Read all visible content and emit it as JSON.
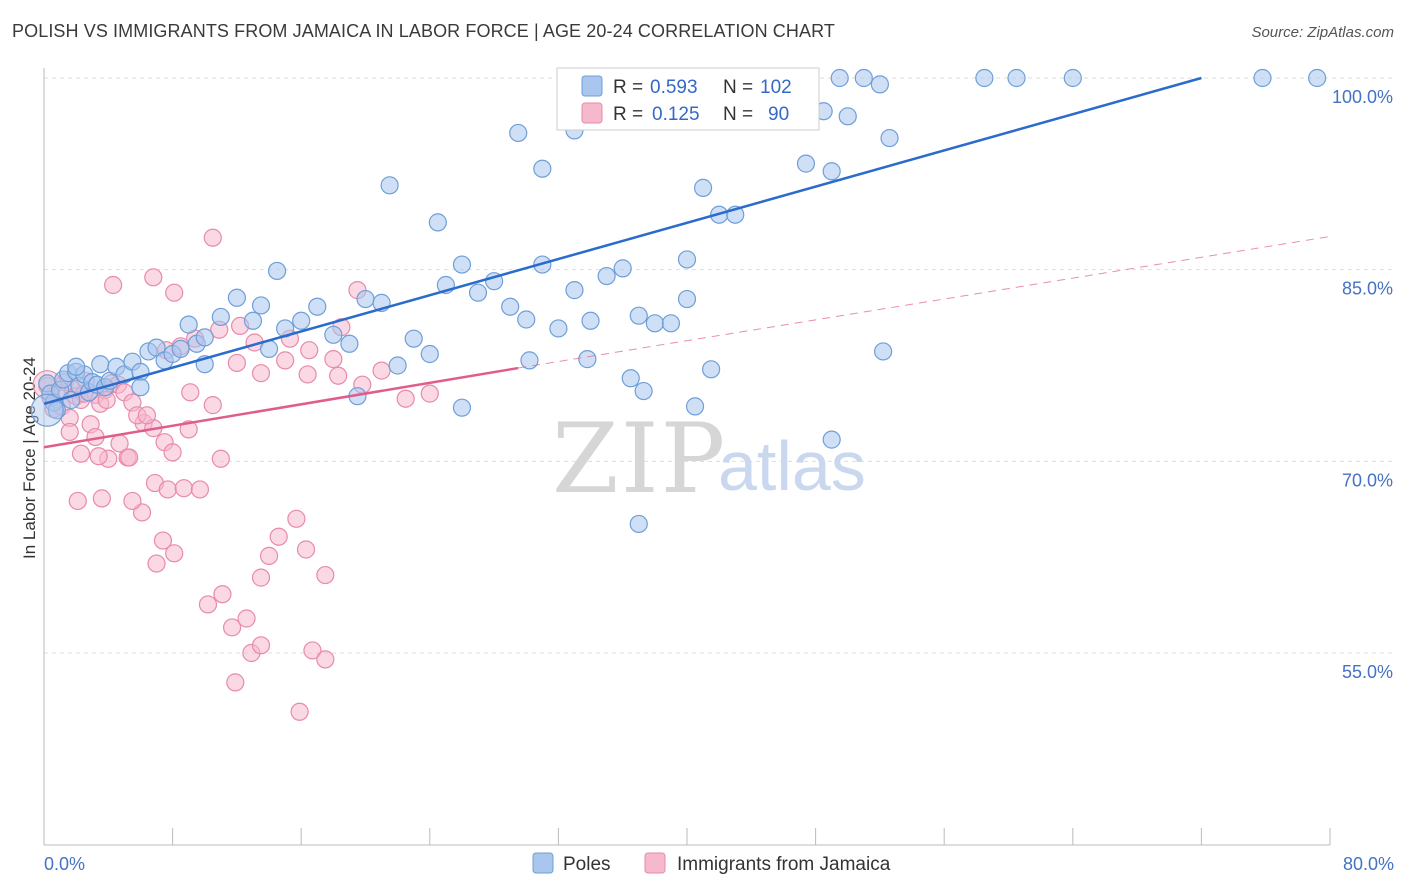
{
  "header": {
    "title": "POLISH VS IMMIGRANTS FROM JAMAICA IN LABOR FORCE | AGE 20-24 CORRELATION CHART",
    "source": "Source: ZipAtlas.com"
  },
  "watermark": {
    "zip": "ZIP",
    "atlas": "atlas"
  },
  "legend_box": {
    "rows": [
      {
        "r_label": "R =",
        "r_value": "0.593",
        "n_label": "N =",
        "n_value": "102"
      },
      {
        "r_label": "R =",
        "r_value": "0.125",
        "n_label": "N =",
        "n_value": "90"
      }
    ]
  },
  "bottom_legend": {
    "poles": "Poles",
    "jamaica": "Immigrants from Jamaica"
  },
  "colors": {
    "blue_fill": "#a8c6ee",
    "blue_stroke": "#6f9ed8",
    "blue_line": "#2a6bcc",
    "pink_fill": "#f5b8cd",
    "pink_stroke": "#e88aab",
    "pink_line": "#e05c8c",
    "axis_label": "#4472c4",
    "grid": "#dddddd"
  },
  "chart_data": {
    "type": "scatter",
    "title": "POLISH VS IMMIGRANTS FROM JAMAICA IN LABOR FORCE | AGE 20-24 CORRELATION CHART",
    "xlabel": "",
    "ylabel": "In Labor Force | Age 20-24",
    "xlim": [
      0,
      80
    ],
    "ylim": [
      40,
      102
    ],
    "x_tick_labels": [
      "0.0%",
      "80.0%"
    ],
    "y_ticks": [
      55,
      70,
      85,
      100
    ],
    "y_tick_labels": [
      "55.0%",
      "70.0%",
      "85.0%",
      "100.0%"
    ],
    "grid": true,
    "legend_position": "top-center",
    "series": [
      {
        "name": "Poles",
        "r": 0.593,
        "n": 102,
        "trend": {
          "x": [
            0,
            72
          ],
          "y": [
            74.5,
            100
          ]
        },
        "points": [
          [
            0.2,
            76.1
          ],
          [
            0.4,
            75.3
          ],
          [
            0.6,
            74.6
          ],
          [
            0.8,
            74.0
          ],
          [
            1.0,
            75.6
          ],
          [
            1.2,
            76.4
          ],
          [
            1.5,
            76.9
          ],
          [
            1.7,
            74.8
          ],
          [
            2.0,
            77.0
          ],
          [
            2.2,
            75.9
          ],
          [
            2.5,
            76.8
          ],
          [
            2.8,
            75.4
          ],
          [
            3.0,
            76.2
          ],
          [
            3.3,
            76.0
          ],
          [
            3.5,
            77.6
          ],
          [
            3.8,
            75.8
          ],
          [
            4.1,
            76.3
          ],
          [
            4.5,
            77.4
          ],
          [
            5.0,
            76.8
          ],
          [
            5.5,
            77.8
          ],
          [
            6.0,
            77.0
          ],
          [
            6.5,
            78.6
          ],
          [
            7.0,
            78.9
          ],
          [
            7.5,
            77.9
          ],
          [
            8.0,
            78.4
          ],
          [
            8.5,
            78.8
          ],
          [
            9.0,
            80.7
          ],
          [
            9.5,
            79.2
          ],
          [
            10.0,
            79.7
          ],
          [
            11.0,
            81.3
          ],
          [
            12.0,
            82.8
          ],
          [
            13.0,
            81.0
          ],
          [
            14.0,
            78.8
          ],
          [
            15.0,
            80.4
          ],
          [
            16.0,
            81.0
          ],
          [
            17.0,
            82.1
          ],
          [
            18.0,
            79.9
          ],
          [
            19.0,
            79.2
          ],
          [
            20.0,
            82.7
          ],
          [
            21.0,
            82.4
          ],
          [
            22.0,
            77.5
          ],
          [
            23.0,
            79.6
          ],
          [
            24.0,
            78.4
          ],
          [
            25.0,
            83.8
          ],
          [
            26.0,
            85.4
          ],
          [
            27.0,
            83.2
          ],
          [
            28.0,
            84.1
          ],
          [
            29.0,
            82.1
          ],
          [
            30.0,
            81.1
          ],
          [
            31.0,
            85.4
          ],
          [
            32.0,
            80.4
          ],
          [
            33.0,
            83.4
          ],
          [
            34.0,
            81.0
          ],
          [
            35.0,
            84.5
          ],
          [
            36.0,
            85.1
          ],
          [
            37.0,
            81.4
          ],
          [
            38.0,
            80.8
          ],
          [
            39.0,
            80.8
          ],
          [
            40.0,
            85.8
          ],
          [
            41.0,
            91.4
          ],
          [
            42.0,
            89.3
          ],
          [
            43.0,
            89.3
          ],
          [
            14.5,
            84.9
          ],
          [
            21.5,
            91.6
          ],
          [
            24.5,
            88.7
          ],
          [
            29.5,
            95.7
          ],
          [
            31.0,
            92.9
          ],
          [
            33.0,
            95.9
          ],
          [
            36.5,
            76.5
          ],
          [
            37.3,
            75.5
          ],
          [
            41.5,
            77.2
          ],
          [
            13.5,
            82.2
          ],
          [
            10.0,
            77.6
          ],
          [
            6.0,
            75.8
          ],
          [
            2.0,
            77.4
          ],
          [
            19.5,
            75.1
          ],
          [
            26.0,
            74.2
          ],
          [
            30.2,
            77.9
          ],
          [
            33.8,
            78.0
          ],
          [
            40.0,
            82.7
          ],
          [
            40.5,
            74.3
          ],
          [
            43.4,
            97.0
          ],
          [
            46.7,
            98.8
          ],
          [
            48.5,
            97.4
          ],
          [
            50.0,
            97.0
          ],
          [
            52.0,
            99.5
          ],
          [
            52.6,
            95.3
          ],
          [
            47.4,
            93.3
          ],
          [
            49.0,
            92.7
          ],
          [
            37.0,
            65.1
          ],
          [
            35.5,
            100
          ],
          [
            45.0,
            100
          ],
          [
            47.0,
            100
          ],
          [
            49.5,
            100
          ],
          [
            51.0,
            100
          ],
          [
            58.5,
            100
          ],
          [
            60.5,
            100
          ],
          [
            64.0,
            100
          ],
          [
            75.8,
            100
          ],
          [
            79.2,
            100
          ],
          [
            52.2,
            78.6
          ],
          [
            49.0,
            71.7
          ]
        ]
      },
      {
        "name": "Immigrants from Jamaica",
        "r": 0.125,
        "n": 90,
        "trend": {
          "x": [
            0,
            29.5
          ],
          "y": [
            71.1,
            77.3
          ]
        },
        "trend_dashed": {
          "x": [
            29.5,
            80
          ],
          "y": [
            77.3,
            87.6
          ]
        },
        "points": [
          [
            0.2,
            75.9
          ],
          [
            0.4,
            75.0
          ],
          [
            0.6,
            74.1
          ],
          [
            0.9,
            75.4
          ],
          [
            1.1,
            74.3
          ],
          [
            1.3,
            76.2
          ],
          [
            1.6,
            73.4
          ],
          [
            1.8,
            75.6
          ],
          [
            2.0,
            75.1
          ],
          [
            2.3,
            74.8
          ],
          [
            2.6,
            76.3
          ],
          [
            2.9,
            72.9
          ],
          [
            3.2,
            75.2
          ],
          [
            3.5,
            74.5
          ],
          [
            3.8,
            75.6
          ],
          [
            4.2,
            76.1
          ],
          [
            4.6,
            76.0
          ],
          [
            5.0,
            75.4
          ],
          [
            5.5,
            74.6
          ],
          [
            6.2,
            73.0
          ],
          [
            6.8,
            72.6
          ],
          [
            7.5,
            71.5
          ],
          [
            8.0,
            70.7
          ],
          [
            9.0,
            72.5
          ],
          [
            10.5,
            74.4
          ],
          [
            12.0,
            77.7
          ],
          [
            13.5,
            76.9
          ],
          [
            15.0,
            77.9
          ],
          [
            16.5,
            78.7
          ],
          [
            18.0,
            78.0
          ],
          [
            19.8,
            76.0
          ],
          [
            21.0,
            77.1
          ],
          [
            22.5,
            74.9
          ],
          [
            24.0,
            75.3
          ],
          [
            1.6,
            72.3
          ],
          [
            2.3,
            70.6
          ],
          [
            3.2,
            71.9
          ],
          [
            4.0,
            70.2
          ],
          [
            5.2,
            70.3
          ],
          [
            5.8,
            73.6
          ],
          [
            6.9,
            68.3
          ],
          [
            7.7,
            67.8
          ],
          [
            8.7,
            67.9
          ],
          [
            9.7,
            67.8
          ],
          [
            11.0,
            70.2
          ],
          [
            14.0,
            62.6
          ],
          [
            16.3,
            63.1
          ],
          [
            17.5,
            61.1
          ],
          [
            7.4,
            63.8
          ],
          [
            8.1,
            62.8
          ],
          [
            10.2,
            58.8
          ],
          [
            11.1,
            59.6
          ],
          [
            11.7,
            57.0
          ],
          [
            12.6,
            57.7
          ],
          [
            12.9,
            55.0
          ],
          [
            13.5,
            55.6
          ],
          [
            13.5,
            60.9
          ],
          [
            14.6,
            64.1
          ],
          [
            15.7,
            65.5
          ],
          [
            15.9,
            50.4
          ],
          [
            16.7,
            55.2
          ],
          [
            17.5,
            54.5
          ],
          [
            11.9,
            52.7
          ],
          [
            6.1,
            66.0
          ],
          [
            5.5,
            66.9
          ],
          [
            7.0,
            62.0
          ],
          [
            3.6,
            67.1
          ],
          [
            2.1,
            66.9
          ],
          [
            2.5,
            75.3
          ],
          [
            3.9,
            74.8
          ],
          [
            4.7,
            71.4
          ],
          [
            5.3,
            70.3
          ],
          [
            6.4,
            73.6
          ],
          [
            7.6,
            78.7
          ],
          [
            8.5,
            79.0
          ],
          [
            9.4,
            79.6
          ],
          [
            10.9,
            80.3
          ],
          [
            12.2,
            80.6
          ],
          [
            13.1,
            79.3
          ],
          [
            15.3,
            79.6
          ],
          [
            16.4,
            76.8
          ],
          [
            18.5,
            80.5
          ],
          [
            19.5,
            83.4
          ],
          [
            18.3,
            76.7
          ],
          [
            9.1,
            75.4
          ],
          [
            3.4,
            70.4
          ],
          [
            4.3,
            83.8
          ],
          [
            10.5,
            87.5
          ],
          [
            6.8,
            84.4
          ],
          [
            8.1,
            83.2
          ]
        ]
      }
    ]
  }
}
